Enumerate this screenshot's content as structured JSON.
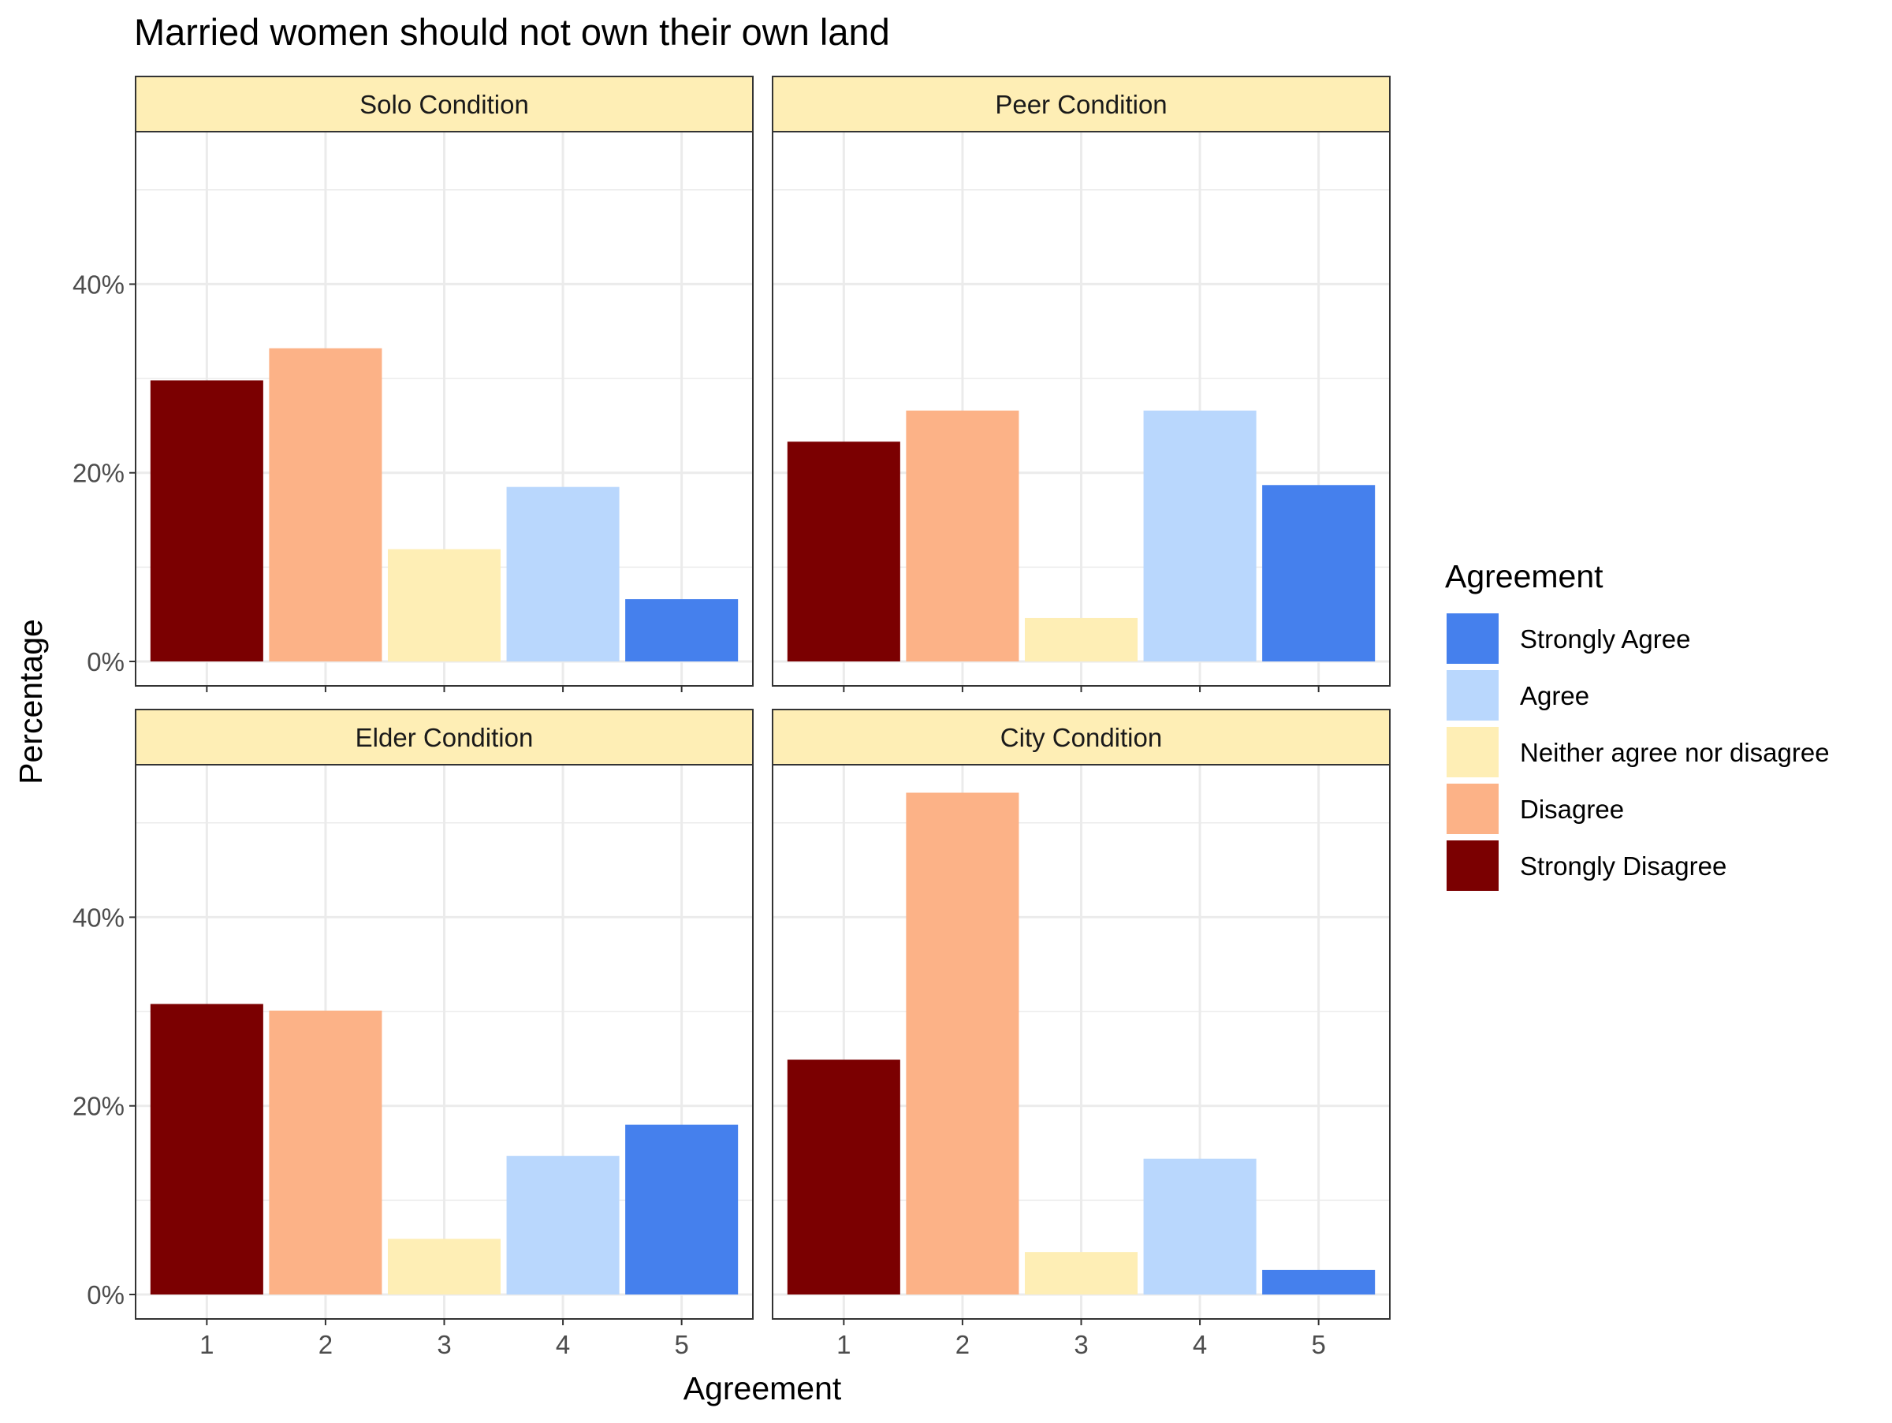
{
  "chart_data": {
    "type": "bar",
    "title": "Married women should not own their own land",
    "xlabel": "Agreement",
    "ylabel": "Percentage",
    "ylim": [
      0,
      56
    ],
    "y_ticks": [
      0,
      20,
      40
    ],
    "y_tick_labels": [
      "0%",
      "20%",
      "40%"
    ],
    "categories": [
      "1",
      "2",
      "3",
      "4",
      "5"
    ],
    "grid": true,
    "facets": [
      {
        "label": "Solo Condition",
        "values": [
          29.8,
          33.2,
          11.9,
          18.5,
          6.6
        ]
      },
      {
        "label": "Peer Condition",
        "values": [
          23.3,
          26.6,
          4.6,
          26.6,
          18.7
        ]
      },
      {
        "label": "Elder Condition",
        "values": [
          30.8,
          30.1,
          5.9,
          14.7,
          18.0
        ]
      },
      {
        "label": "City Condition",
        "values": [
          24.9,
          53.2,
          4.5,
          14.4,
          2.6
        ]
      }
    ],
    "legend": {
      "title": "Agreement",
      "position": "right",
      "entries": [
        {
          "label": "Strongly Agree",
          "color": "#4580ED"
        },
        {
          "label": "Agree",
          "color": "#B9D7FD"
        },
        {
          "label": "Neither agree nor disagree",
          "color": "#FEEEB5"
        },
        {
          "label": "Disagree",
          "color": "#FCB287"
        },
        {
          "label": "Strongly Disagree",
          "color": "#7B0001"
        }
      ]
    },
    "category_colors": [
      "#7B0001",
      "#FCB287",
      "#FEEEB5",
      "#B9D7FD",
      "#4580ED"
    ],
    "strip_fill": "#FEEEB5"
  }
}
